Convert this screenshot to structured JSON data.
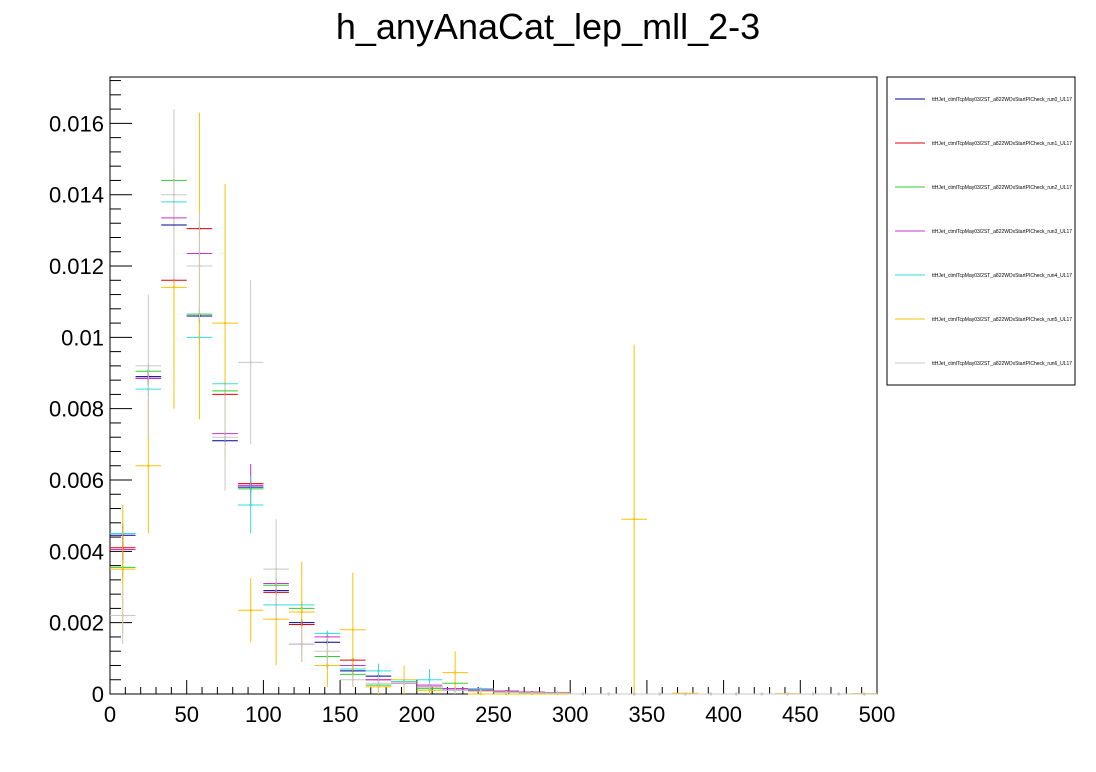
{
  "chart_data": {
    "type": "scatter",
    "title": "h_anyAnaCat_lep_mll_2-3",
    "xlabel": "",
    "ylabel": "",
    "xlim": [
      0,
      500
    ],
    "ylim": [
      0,
      0.0173
    ],
    "x_ticks": [
      "0",
      "50",
      "100",
      "150",
      "200",
      "250",
      "300",
      "350",
      "400",
      "450",
      "500"
    ],
    "y_ticks": [
      {
        "v": 0,
        "label": "0"
      },
      {
        "v": 0.002,
        "label": "0.002"
      },
      {
        "v": 0.004,
        "label": "0.004"
      },
      {
        "v": 0.006,
        "label": "0.006"
      },
      {
        "v": 0.008,
        "label": "0.008"
      },
      {
        "v": 0.01,
        "label": "0.01"
      },
      {
        "v": 0.012,
        "label": "0.012"
      },
      {
        "v": 0.014,
        "label": "0.014"
      },
      {
        "v": 0.016,
        "label": "0.016"
      }
    ],
    "bin_width": 16.67,
    "x": [
      8.3,
      25,
      41.7,
      58.3,
      75,
      91.7,
      108.3,
      125,
      141.7,
      158.3,
      175,
      191.7,
      208.3,
      225,
      241.7,
      258.3,
      275,
      291.7,
      308.3,
      325,
      341.7,
      358.3,
      375,
      391.7,
      408.3,
      425,
      441.7,
      458.3,
      475,
      491.7
    ],
    "legend_position": "right",
    "series": [
      {
        "name": "ttHJet_ctmlTcpMay03/2ST_a822WDxStartPICheck_run0_UL17",
        "color": "#000099",
        "values": [
          0.00445,
          0.0089,
          0.01315,
          0.0106,
          0.0071,
          0.0058,
          0.0029,
          0.002,
          0.00145,
          0.00065,
          0.0005,
          0.0003,
          0.0002,
          0.0001,
          0.0001,
          8e-05,
          5e-05,
          3e-05,
          0,
          0,
          0,
          0,
          0,
          0,
          0,
          0,
          0,
          0,
          0,
          0
        ],
        "errors": [
          0.0003,
          0.0002,
          0.0002,
          0.0002,
          0.00015,
          0.00012,
          0.0001,
          0.0001,
          8e-05,
          6e-05,
          5e-05,
          4e-05,
          3e-05,
          3e-05,
          2e-05,
          2e-05,
          2e-05,
          1e-05,
          0,
          0,
          0,
          0,
          0,
          0,
          0,
          0,
          0,
          0,
          0,
          0
        ]
      },
      {
        "name": "ttHJet_ctmlTcpMay03/2ST_a822WDxStartPICheck_run1_UL17",
        "color": "#e0000f",
        "values": [
          0.0041,
          0.00885,
          0.0116,
          0.01305,
          0.0084,
          0.0059,
          0.00285,
          0.00195,
          0.0008,
          0.00095,
          0.0004,
          0.00035,
          0.0002,
          0.00015,
          0.0001,
          8e-05,
          5e-05,
          3e-05,
          0,
          0,
          0,
          0,
          0,
          0,
          0,
          0,
          0,
          0,
          0,
          0
        ],
        "errors": [
          0.0003,
          0.0002,
          0.0002,
          0.0002,
          0.00015,
          0.00012,
          0.0001,
          0.0001,
          8e-05,
          6e-05,
          5e-05,
          4e-05,
          3e-05,
          3e-05,
          2e-05,
          2e-05,
          2e-05,
          1e-05,
          0,
          0,
          0,
          0,
          0,
          0,
          0,
          0,
          0,
          0,
          0,
          0
        ]
      },
      {
        "name": "ttHJet_ctmlTcpMay03/2ST_a822WDxStartPICheck_run2_UL17",
        "color": "#33cc33",
        "values": [
          0.00355,
          0.00905,
          0.0144,
          0.01065,
          0.0085,
          0.00575,
          0.00305,
          0.0024,
          0.00105,
          0.00055,
          0.00025,
          0.00035,
          0.00015,
          0.0003,
          8e-05,
          5e-05,
          3e-05,
          2e-05,
          0,
          0,
          0,
          0,
          0,
          0,
          0,
          0,
          0,
          0,
          0,
          0
        ],
        "errors": [
          0.0003,
          0.0002,
          0.0002,
          0.0002,
          0.00015,
          0.00012,
          0.0001,
          0.0001,
          8e-05,
          6e-05,
          5e-05,
          4e-05,
          3e-05,
          3e-05,
          2e-05,
          2e-05,
          2e-05,
          1e-05,
          0,
          0,
          0,
          0,
          0,
          0,
          0,
          0,
          0,
          0,
          0,
          0
        ]
      },
      {
        "name": "ttHJet_ctmlTcpMay03/2ST_a822WDxStartPICheck_run3_UL17",
        "color": "#cc33cc",
        "values": [
          0.00405,
          0.00885,
          0.01335,
          0.01235,
          0.0073,
          0.00585,
          0.0031,
          0.0014,
          0.0016,
          0.0008,
          0.0004,
          0.0003,
          0.00025,
          0.00015,
          0.00012,
          8e-05,
          5e-05,
          3e-05,
          0,
          0,
          0,
          0,
          0,
          0,
          0,
          0,
          0,
          0,
          0,
          0
        ],
        "errors": [
          0.0003,
          0.0002,
          0.0002,
          0.0002,
          0.00015,
          0.0006,
          0.0001,
          0.0001,
          8e-05,
          6e-05,
          5e-05,
          4e-05,
          3e-05,
          3e-05,
          2e-05,
          2e-05,
          2e-05,
          1e-05,
          0,
          0,
          0,
          0,
          0,
          0,
          0,
          0,
          0,
          0,
          0,
          0
        ]
      },
      {
        "name": "ttHJet_ctmlTcpMay03/2ST_a822WDxStartPICheck_run4_UL17",
        "color": "#33dddd",
        "values": [
          0.0045,
          0.00855,
          0.0138,
          0.01,
          0.0087,
          0.0053,
          0.0025,
          0.0025,
          0.0017,
          0.0007,
          0.00065,
          0.00035,
          0.0004,
          0.0001,
          0.00015,
          5e-05,
          3e-05,
          2e-05,
          0,
          0,
          0,
          0,
          0,
          0,
          0,
          0,
          0,
          0,
          0,
          0
        ],
        "errors": [
          0.0003,
          0.0002,
          0.0002,
          0.0002,
          0.00015,
          0.0008,
          0.0001,
          0.0001,
          8e-05,
          6e-05,
          0.0002,
          4e-05,
          0.0003,
          3e-05,
          2e-05,
          2e-05,
          2e-05,
          1e-05,
          0,
          0,
          0,
          0,
          0,
          0,
          0,
          0,
          0,
          0,
          0,
          0
        ]
      },
      {
        "name": "ttHJet_ctmlTcpMay03/2ST_a822WDxStartPICheck_run5_UL17",
        "color": "#ffc000",
        "values": [
          0.0035,
          0.0064,
          0.0114,
          0.012,
          0.0104,
          0.00235,
          0.0021,
          0.0023,
          0.0008,
          0.0018,
          0.0002,
          0.0004,
          0.0001,
          0.0006,
          0,
          0,
          0,
          0,
          0,
          0,
          0.0049,
          0,
          2e-05,
          0,
          0,
          0,
          1e-05,
          0,
          0,
          1e-05
        ],
        "errors": [
          0.0018,
          0.0019,
          0.0034,
          0.0043,
          0.0039,
          0.0009,
          0.0013,
          0.0014,
          0.0006,
          0.0016,
          0.0002,
          0.0004,
          0.0001,
          0.0006,
          0,
          0,
          0,
          0,
          0,
          0,
          0.0049,
          0,
          2e-05,
          0,
          0,
          0,
          1e-05,
          0,
          0,
          1e-05
        ]
      },
      {
        "name": "ttHJet_ctmlTcpMay03/2ST_a822WDxStartPICheck_run6_UL17",
        "color": "#c8c8c8",
        "values": [
          0.0022,
          0.0092,
          0.014,
          0.012,
          0.0072,
          0.0093,
          0.0035,
          0.0014,
          0.0012,
          0.0004,
          0.0003,
          0.0003,
          0.0002,
          0.0001,
          8e-05,
          5e-05,
          3e-05,
          2e-05,
          0,
          0,
          0,
          0,
          0,
          0,
          0,
          0,
          0,
          0,
          0,
          0
        ],
        "errors": [
          0.0008,
          0.002,
          0.0024,
          0.0015,
          0.0015,
          0.0023,
          0.0014,
          0.0005,
          0.0004,
          0.0002,
          0.0002,
          0.0002,
          0.0001,
          0.0001,
          5e-05,
          4e-05,
          2e-05,
          1e-05,
          0,
          0,
          0,
          0,
          0,
          0,
          0,
          0,
          0,
          0,
          0,
          0
        ]
      }
    ]
  }
}
